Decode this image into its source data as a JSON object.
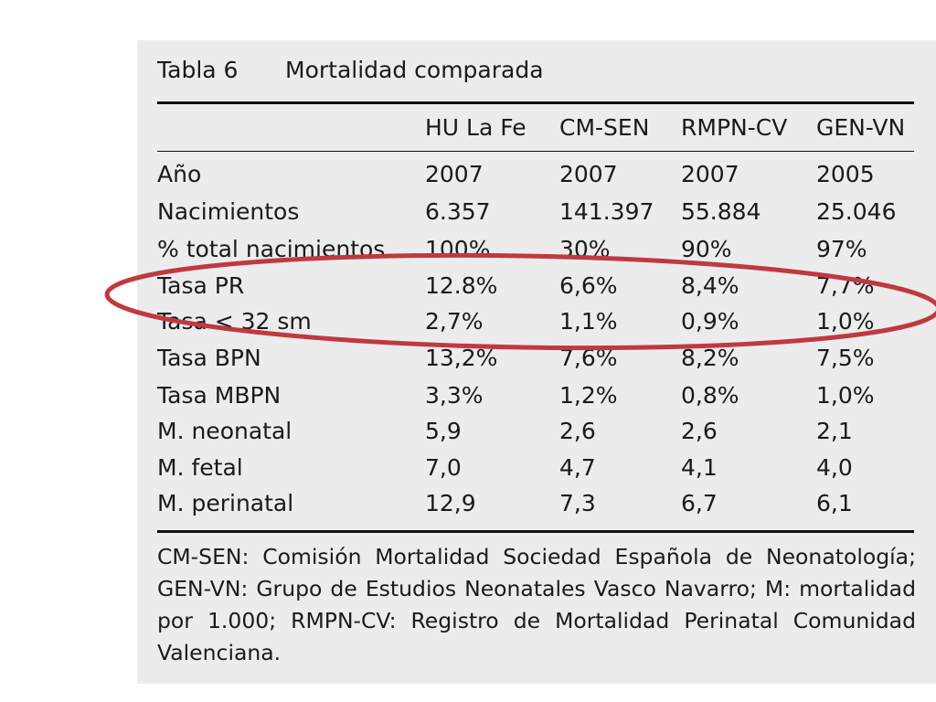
{
  "table": {
    "number": "Tabla 6",
    "caption": "Mortalidad comparada",
    "columns": [
      "",
      "HU La Fe",
      "CM-SEN",
      "RMPN-CV",
      "GEN-VN"
    ],
    "rows": [
      [
        "Año",
        "2007",
        "2007",
        "2007",
        "2005"
      ],
      [
        "Nacimientos",
        "6.357",
        "141.397",
        "55.884",
        "25.046"
      ],
      [
        "% total nacimientos",
        "100%",
        "30%",
        "90%",
        "97%"
      ],
      [
        "Tasa PR",
        "12.8%",
        "6,6%",
        "8,4%",
        "7,7%"
      ],
      [
        "Tasa < 32 sm",
        "2,7%",
        "1,1%",
        "0,9%",
        "1,0%"
      ],
      [
        "Tasa BPN",
        "13,2%",
        "7,6%",
        "8,2%",
        "7,5%"
      ],
      [
        "Tasa MBPN",
        "3,3%",
        "1,2%",
        "0,8%",
        "1,0%"
      ],
      [
        "M. neonatal",
        "5,9",
        "2,6",
        "2,6",
        "2,1"
      ],
      [
        "M. fetal",
        "7,0",
        "4,7",
        "4,1",
        "4,0"
      ],
      [
        "M. perinatal",
        "12,9",
        "7,3",
        "6,7",
        "6,1"
      ]
    ],
    "footnote": "CM-SEN: Comisión Mortalidad Sociedad Española de Neonatología; GEN-VN: Grupo de Estudios Neonatales Vasco Navarro; M: mortalidad por 1.000; RMPN-CV: Registro de Mortalidad Perinatal Comunidad Valenciana."
  },
  "highlight": {
    "color": "#c0393e",
    "rows_circled": [
      "Tasa PR",
      "Tasa < 32 sm"
    ]
  }
}
